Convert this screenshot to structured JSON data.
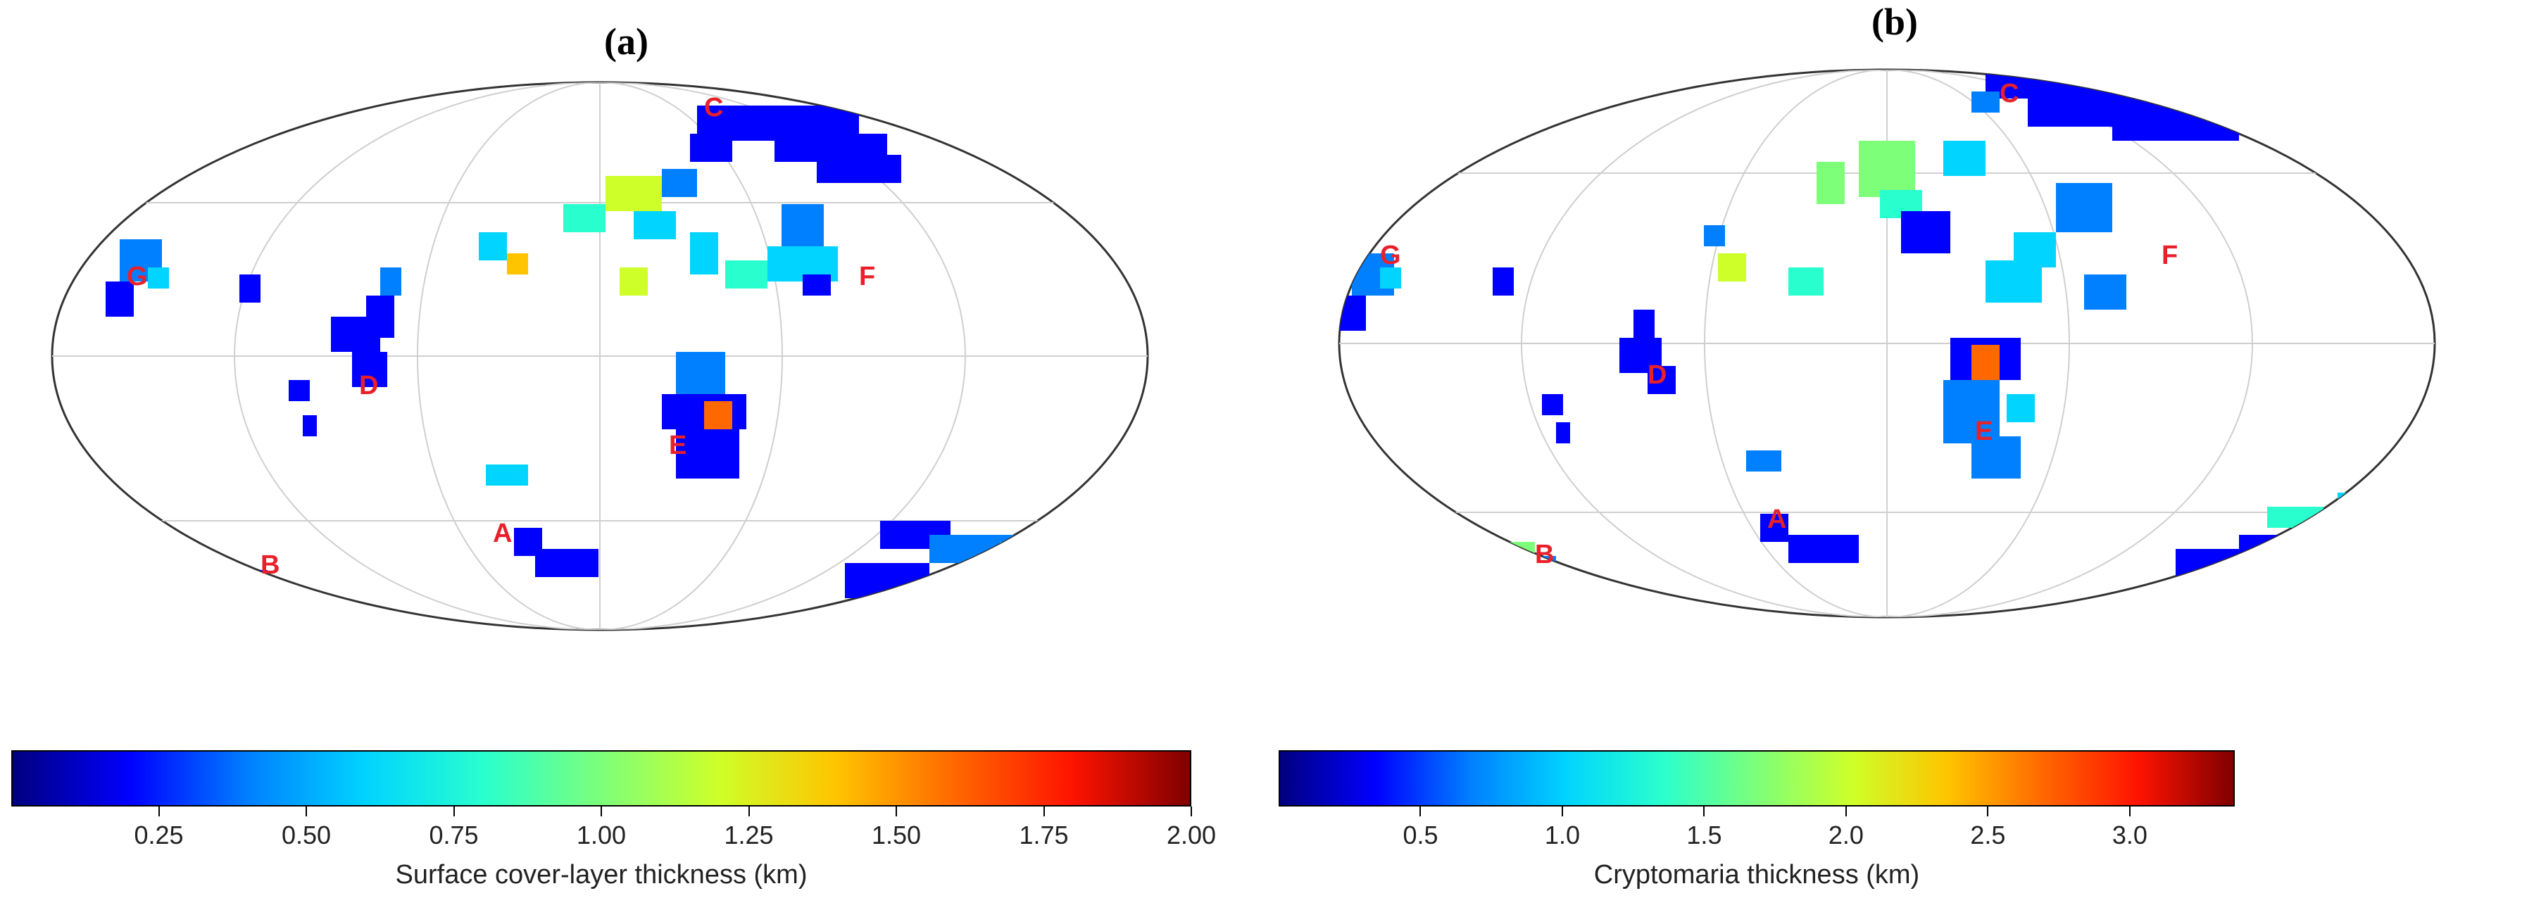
{
  "colormap": [
    "#00007f",
    "#0000ff",
    "#0080ff",
    "#00d4ff",
    "#29ffce",
    "#7dff7a",
    "#ceff29",
    "#ffc400",
    "#ff6800",
    "#ff1300",
    "#7f0000"
  ],
  "panels": [
    {
      "id": "a",
      "label": "(a)",
      "colorbar": {
        "title": "Surface cover-layer thickness (km)",
        "min": 0.0,
        "max": 2.0,
        "ticks": [
          "0.25",
          "0.50",
          "0.75",
          "1.00",
          "1.25",
          "1.50",
          "1.75",
          "2.00"
        ],
        "tick_values": [
          0.25,
          0.5,
          0.75,
          1.0,
          1.25,
          1.5,
          1.75,
          2.0
        ]
      },
      "map_labels": [
        "A",
        "B",
        "C",
        "D",
        "E",
        "F",
        "G"
      ]
    },
    {
      "id": "b",
      "label": "(b)",
      "colorbar": {
        "title": "Cryptomaria thickness (km)",
        "min": 0.0,
        "max": 3.37,
        "ticks": [
          "0.5",
          "1.0",
          "1.5",
          "2.0",
          "2.5",
          "3.0"
        ],
        "tick_values": [
          0.5,
          1.0,
          1.5,
          2.0,
          2.5,
          3.0
        ]
      },
      "map_labels": [
        "A",
        "B",
        "C",
        "D",
        "E",
        "F",
        "G"
      ]
    }
  ]
}
